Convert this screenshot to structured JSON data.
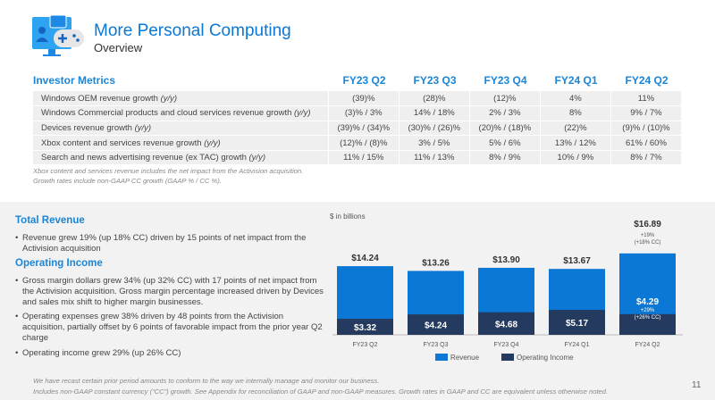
{
  "header": {
    "title": "More Personal Computing",
    "subtitle": "Overview",
    "logo_icon": "monitor-gamepad-icon"
  },
  "metrics": {
    "heading": "Investor Metrics",
    "columns": [
      "FY23 Q2",
      "FY23 Q3",
      "FY23 Q4",
      "FY24 Q1",
      "FY24 Q2"
    ],
    "rows": [
      {
        "label": "Windows OEM revenue growth ",
        "unit": "(y/y)",
        "values": [
          "(39)%",
          "(28)%",
          "(12)%",
          "4%",
          "11%"
        ]
      },
      {
        "label": "Windows Commercial products and cloud services revenue growth ",
        "unit": "(y/y)",
        "values": [
          "(3)% / 3%",
          "14% / 18%",
          "2% / 3%",
          "8%",
          "9% / 7%"
        ]
      },
      {
        "label": "Devices revenue growth ",
        "unit": "(y/y)",
        "values": [
          "(39)% / (34)%",
          "(30)% / (26)%",
          "(20)% / (18)%",
          "(22)%",
          "(9)% / (10)%"
        ]
      },
      {
        "label": "Xbox content and services revenue growth ",
        "unit": "(y/y)",
        "values": [
          "(12)% / (8)%",
          "3% / 5%",
          "5% / 6%",
          "13% / 12%",
          "61% / 60%"
        ]
      },
      {
        "label": "Search and news advertising revenue (ex TAC) growth ",
        "unit": "(y/y)",
        "values": [
          "11% / 15%",
          "11% / 13%",
          "8% / 9%",
          "10% / 9%",
          "8% / 7%"
        ]
      }
    ],
    "notes": [
      "Xbox content and services revenue includes the net impact from the Activision acquisition.",
      "Growth rates include non-GAAP CC growth (GAAP % / CC %)."
    ]
  },
  "commentary": {
    "total_revenue": {
      "heading": "Total Revenue",
      "bullets": [
        "Revenue grew 19% (up 18% CC) driven by 15 points of net impact from the Activision acquisition"
      ]
    },
    "operating_income": {
      "heading": "Operating Income",
      "bullets": [
        "Gross margin dollars grew 34% (up 32% CC) with 17 points of net impact from the Activision acquisition. Gross margin percentage increased driven by Devices and sales mix shift to higher margin businesses.",
        "Operating expenses grew 38% driven by 48 points from the Activision acquisition, partially offset by 6 points of favorable impact from the prior year Q2 charge",
        "Operating income grew 29% (up 26% CC)"
      ]
    }
  },
  "chart_data": {
    "type": "bar",
    "ylabel": "$ in billions",
    "categories": [
      "FY23 Q2",
      "FY23 Q3",
      "FY23 Q4",
      "FY24 Q1",
      "FY24 Q2"
    ],
    "series": [
      {
        "name": "Revenue",
        "color": "#0a78d4",
        "values": [
          14.24,
          13.26,
          13.9,
          13.67,
          16.89
        ],
        "labels": [
          "$14.24",
          "$13.26",
          "$13.90",
          "$13.67",
          "$16.89"
        ]
      },
      {
        "name": "Operating Income",
        "color": "#243a5e",
        "values": [
          3.32,
          4.24,
          4.68,
          5.17,
          4.29
        ],
        "labels": [
          "$3.32",
          "$4.24",
          "$4.68",
          "$5.17",
          "$4.29"
        ]
      }
    ],
    "annotations": {
      "revenue_growth": [
        "+19%",
        "(+18% CC)"
      ],
      "oi_growth": [
        "+29%",
        "(+26% CC)"
      ]
    },
    "grid": false,
    "legend": "bottom"
  },
  "footer": {
    "lines": [
      "We have recast certain prior period amounts to conform to the way we internally manage and monitor our business.",
      "Includes non-GAAP constant currency (“CC”) growth. See Appendix for reconciliation of GAAP and non-GAAP measures. Growth rates in GAAP and CC are equivalent unless otherwise noted."
    ],
    "page": "11"
  }
}
